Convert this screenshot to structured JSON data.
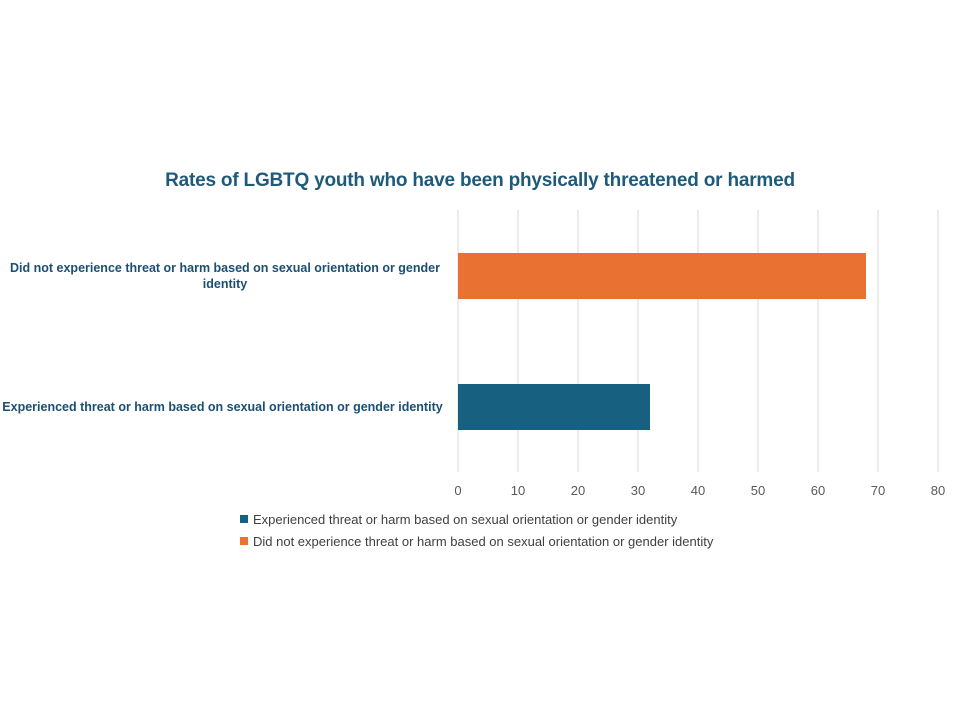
{
  "chart_data": {
    "type": "bar",
    "orientation": "horizontal",
    "title": "Rates of LGBTQ youth who have been physically threatened or harmed",
    "categories": [
      "Did not experience threat or harm based on sexual orientation or gender identity",
      "Experienced threat or harm based on sexual orientation or gender identity"
    ],
    "series": [
      {
        "name": "Experienced threat or harm based on sexual orientation or gender identity",
        "category": "Experienced threat or harm based on sexual orientation or gender identity",
        "value": 32,
        "color": "#17607F"
      },
      {
        "name": "Did not experience threat or harm based on sexual orientation or gender identity",
        "category": "Did not experience threat or harm based on sexual orientation or gender identity",
        "value": 68,
        "color": "#E97132"
      }
    ],
    "xlim": [
      0,
      80
    ],
    "xticks": [
      0,
      10,
      20,
      30,
      40,
      50,
      60,
      70,
      80
    ],
    "grid": "vertical",
    "legend_position": "bottom"
  }
}
